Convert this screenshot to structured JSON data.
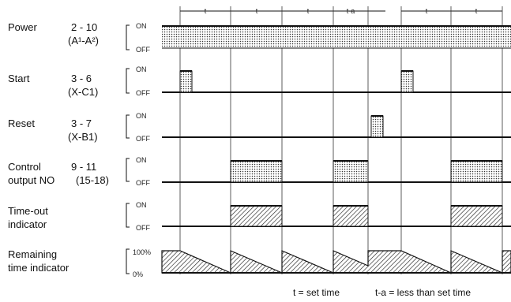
{
  "duration_labels": [
    "t",
    "t",
    "t",
    "t-a",
    "t",
    "t"
  ],
  "signals": [
    {
      "name": "Power",
      "terminals": "2 - 10",
      "sub": "(A¹-A²)",
      "on_label": "ON",
      "off_label": "OFF"
    },
    {
      "name": "Start",
      "terminals": "3 - 6",
      "sub": "(X-C1)",
      "on_label": "ON",
      "off_label": "OFF"
    },
    {
      "name": "Reset",
      "terminals": "3 - 7",
      "sub": "(X-B1)",
      "on_label": "ON",
      "off_label": "OFF"
    },
    {
      "name": "Control",
      "name2": "output NO",
      "terminals": "9 - 11",
      "sub": "(15-18)",
      "on_label": "ON",
      "off_label": "OFF"
    },
    {
      "name": "Time-out",
      "name2": "indicator",
      "on_label": "ON",
      "off_label": "OFF"
    },
    {
      "name": "Remaining",
      "name2": "time indicator",
      "on_label": "100%",
      "off_label": "0%"
    }
  ],
  "legend": {
    "t": "t = set time",
    "ta": "t-a = less than set time"
  }
}
